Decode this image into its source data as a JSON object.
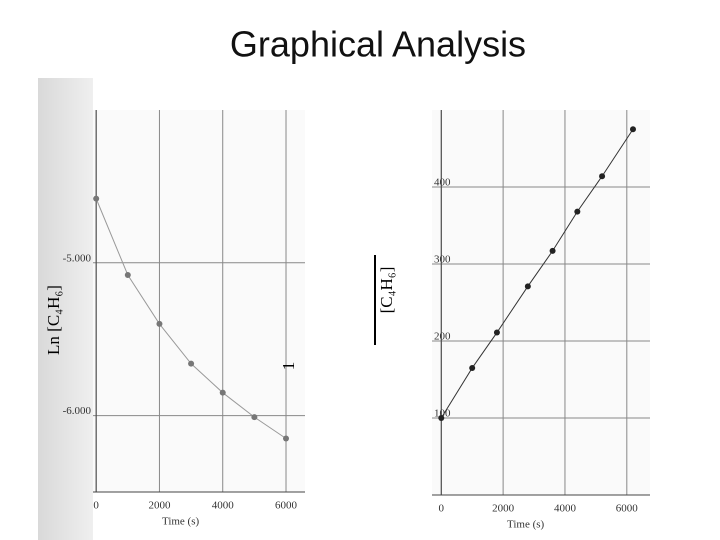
{
  "title": "Graphical Analysis",
  "chart_data": [
    {
      "type": "scatter",
      "xlabel": "Time (s)",
      "ylabel": "Ln [C₄H₆]",
      "x": [
        0,
        1000,
        2000,
        3000,
        4000,
        5000,
        6000
      ],
      "values": [
        -4.58,
        -5.08,
        -5.4,
        -5.66,
        -5.85,
        -6.01,
        -6.15
      ],
      "color": "#777777",
      "line_color": "#999999",
      "xlim": [
        -100,
        6600
      ],
      "ylim": [
        -6.5,
        -4.0
      ],
      "xticks": [
        0,
        2000,
        4000,
        6000
      ],
      "yticks": [
        {
          "value": -5,
          "label": "-5.000"
        },
        {
          "value": -6,
          "label": "-6.000"
        }
      ],
      "grid": true
    },
    {
      "type": "scatter",
      "xlabel": "Time (s)",
      "ylabel_numerator": "1",
      "ylabel_denominator": "[C₄H₆]",
      "x": [
        0,
        1000,
        1800,
        2800,
        3600,
        4400,
        5200,
        6200
      ],
      "values": [
        100,
        165,
        211,
        271,
        317,
        368,
        414,
        475
      ],
      "color": "#222222",
      "line_color": "#333333",
      "xlim": [
        -300,
        6750
      ],
      "ylim": [
        0,
        500
      ],
      "xticks": [
        0,
        2000,
        4000,
        6000
      ],
      "yticks": [
        100,
        200,
        300,
        400
      ],
      "grid": true
    }
  ]
}
